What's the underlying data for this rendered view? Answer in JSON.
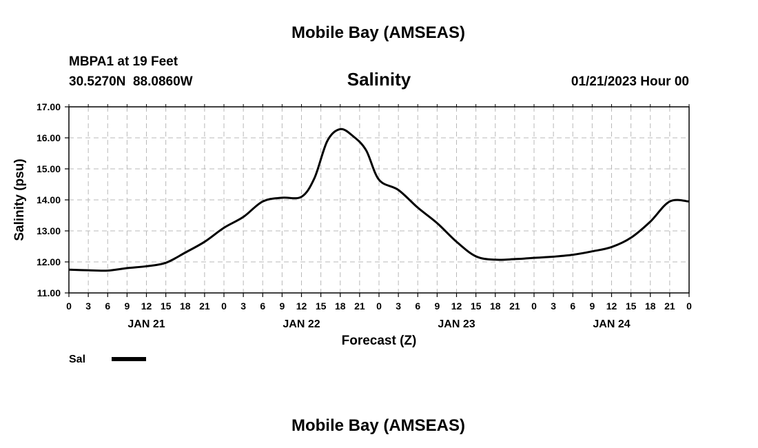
{
  "page": {
    "top_title": "Mobile Bay (AMSEAS)",
    "bottom_title": "Mobile Bay (AMSEAS)",
    "station_line1": "MBPA1 at 19 Feet",
    "station_line2": "30.5270N  88.0860W",
    "chart_title": "Salinity",
    "timestamp": "01/21/2023 Hour 00"
  },
  "chart_data": {
    "type": "line",
    "title": "Salinity",
    "xlabel": "Forecast (Z)",
    "ylabel": "Salinity (psu)",
    "ylim": [
      11.0,
      17.0
    ],
    "y_ticks": [
      "11.00",
      "12.00",
      "13.00",
      "14.00",
      "15.00",
      "16.00",
      "17.00"
    ],
    "xlim_hours": [
      0,
      96
    ],
    "x_tick_labels": [
      "0",
      "3",
      "6",
      "9",
      "12",
      "15",
      "18",
      "21",
      "0",
      "3",
      "6",
      "9",
      "12",
      "15",
      "18",
      "21",
      "0",
      "3",
      "6",
      "9",
      "12",
      "15",
      "18",
      "21",
      "0",
      "3",
      "6",
      "9",
      "12",
      "15",
      "18",
      "21",
      "0"
    ],
    "day_labels": [
      {
        "label": "JAN 21",
        "hour": 12
      },
      {
        "label": "JAN 22",
        "hour": 36
      },
      {
        "label": "JAN 23",
        "hour": 60
      },
      {
        "label": "JAN 24",
        "hour": 84
      }
    ],
    "grid": true,
    "series": [
      {
        "name": "Sal",
        "color": "#000000",
        "x": [
          0,
          3,
          6,
          9,
          12,
          15,
          18,
          21,
          24,
          27,
          30,
          33,
          36,
          38,
          40,
          42,
          44,
          46,
          48,
          51,
          54,
          57,
          60,
          63,
          66,
          69,
          72,
          75,
          78,
          81,
          84,
          87,
          90,
          93,
          96
        ],
        "y": [
          11.75,
          11.73,
          11.72,
          11.8,
          11.86,
          11.97,
          12.3,
          12.65,
          13.1,
          13.45,
          13.95,
          14.07,
          14.1,
          14.7,
          15.9,
          16.28,
          16.05,
          15.6,
          14.65,
          14.32,
          13.75,
          13.25,
          12.65,
          12.18,
          12.07,
          12.09,
          12.13,
          12.17,
          12.23,
          12.34,
          12.48,
          12.78,
          13.3,
          13.95,
          13.95
        ]
      }
    ],
    "legend": [
      {
        "label": "Sal",
        "position": "bottom-left"
      }
    ]
  }
}
